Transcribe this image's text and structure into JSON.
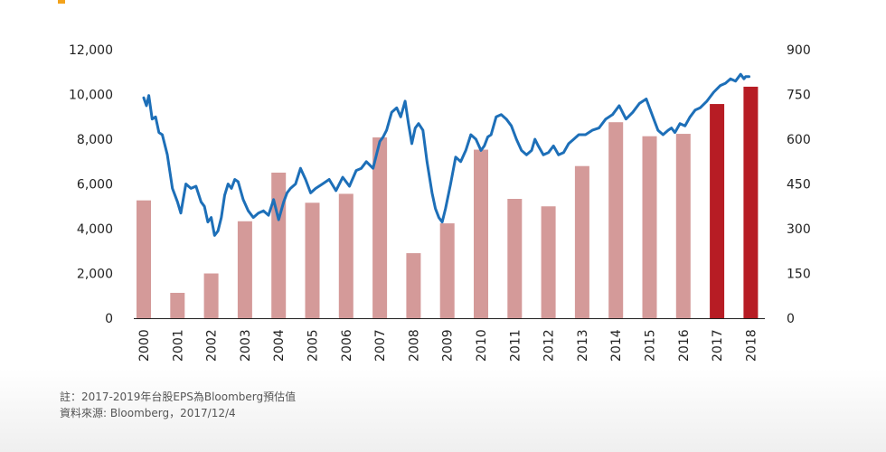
{
  "chart_data": {
    "type": "bar+line",
    "categories": [
      "2000",
      "2001",
      "2002",
      "2003",
      "2004",
      "2005",
      "2006",
      "2007",
      "2008",
      "2009",
      "2010",
      "2011",
      "2012",
      "2013",
      "2014",
      "2015",
      "2016",
      "2017",
      "2018"
    ],
    "left_axis": {
      "ylim": [
        0,
        12000
      ],
      "ticks": [
        "0",
        "2,000",
        "4,000",
        "6,000",
        "8,000",
        "10,000",
        "12,000"
      ]
    },
    "right_axis": {
      "ylim": [
        0,
        900
      ],
      "ticks": [
        "0",
        "150",
        "300",
        "450",
        "600",
        "750",
        "900"
      ]
    },
    "bars": {
      "axis": "right",
      "values": [
        395,
        85,
        150,
        325,
        488,
        387,
        417,
        606,
        218,
        318,
        565,
        400,
        375,
        510,
        657,
        610,
        618,
        718,
        776
      ],
      "colors": [
        "#d49a99",
        "#d49a99",
        "#d49a99",
        "#d49a99",
        "#d49a99",
        "#d49a99",
        "#d49a99",
        "#d49a99",
        "#d49a99",
        "#d49a99",
        "#d49a99",
        "#d49a99",
        "#d49a99",
        "#d49a99",
        "#d49a99",
        "#d49a99",
        "#d49a99",
        "#b71c24",
        "#b71c24"
      ]
    },
    "line": {
      "axis": "left",
      "color": "#1d6fb8",
      "x": [
        2000.0,
        2000.08,
        2000.15,
        2000.25,
        2000.35,
        2000.45,
        2000.55,
        2000.7,
        2000.85,
        2001.0,
        2001.1,
        2001.25,
        2001.4,
        2001.55,
        2001.7,
        2001.8,
        2001.9,
        2002.0,
        2002.1,
        2002.2,
        2002.3,
        2002.4,
        2002.5,
        2002.6,
        2002.7,
        2002.8,
        2002.95,
        2003.1,
        2003.25,
        2003.4,
        2003.55,
        2003.7,
        2003.85,
        2004.0,
        2004.15,
        2004.25,
        2004.35,
        2004.5,
        2004.65,
        2004.8,
        2004.95,
        2005.1,
        2005.3,
        2005.5,
        2005.7,
        2005.9,
        2006.1,
        2006.3,
        2006.45,
        2006.6,
        2006.8,
        2007.0,
        2007.1,
        2007.2,
        2007.35,
        2007.5,
        2007.62,
        2007.75,
        2007.85,
        2007.95,
        2008.05,
        2008.15,
        2008.28,
        2008.4,
        2008.55,
        2008.65,
        2008.75,
        2008.85,
        2008.95,
        2009.1,
        2009.25,
        2009.4,
        2009.55,
        2009.7,
        2009.85,
        2010.0,
        2010.1,
        2010.2,
        2010.3,
        2010.45,
        2010.6,
        2010.75,
        2010.9,
        2011.05,
        2011.2,
        2011.35,
        2011.5,
        2011.6,
        2011.7,
        2011.85,
        2012.0,
        2012.15,
        2012.3,
        2012.45,
        2012.6,
        2012.75,
        2012.9,
        2013.1,
        2013.3,
        2013.5,
        2013.7,
        2013.9,
        2014.1,
        2014.3,
        2014.5,
        2014.7,
        2014.9,
        2015.1,
        2015.25,
        2015.4,
        2015.55,
        2015.65,
        2015.75,
        2015.9,
        2016.05,
        2016.2,
        2016.35,
        2016.5,
        2016.7,
        2016.9,
        2017.1,
        2017.25,
        2017.4,
        2017.55,
        2017.7,
        2017.8,
        2017.85,
        2017.95
      ],
      "y": [
        9850,
        9500,
        9950,
        8900,
        9000,
        8300,
        8200,
        7300,
        5800,
        5200,
        4700,
        6000,
        5800,
        5900,
        5200,
        5000,
        4300,
        4500,
        3700,
        3900,
        4500,
        5500,
        6000,
        5800,
        6200,
        6100,
        5300,
        4800,
        4500,
        4700,
        4800,
        4600,
        5300,
        4400,
        5200,
        5600,
        5800,
        6000,
        6700,
        6200,
        5600,
        5800,
        6000,
        6200,
        5700,
        6300,
        5900,
        6600,
        6700,
        7000,
        6700,
        7900,
        8100,
        8400,
        9200,
        9400,
        9000,
        9700,
        8700,
        7800,
        8500,
        8700,
        8400,
        7000,
        5600,
        4900,
        4500,
        4300,
        4900,
        6000,
        7200,
        7000,
        7500,
        8200,
        8000,
        7500,
        7700,
        8100,
        8200,
        9000,
        9100,
        8900,
        8600,
        8000,
        7500,
        7300,
        7500,
        8000,
        7700,
        7300,
        7400,
        7700,
        7300,
        7400,
        7800,
        8000,
        8200,
        8200,
        8400,
        8500,
        8900,
        9100,
        9500,
        8900,
        9200,
        9600,
        9800,
        9000,
        8400,
        8200,
        8400,
        8500,
        8300,
        8700,
        8600,
        9000,
        9300,
        9400,
        9700,
        10100,
        10400,
        10500,
        10700,
        10600,
        10900,
        10700,
        10800,
        10800
      ]
    },
    "notes": {
      "line1": "註：2017-2019年台股EPS為Bloomberg預估值",
      "line2": "資料來源: Bloomberg，2017/12/4"
    }
  }
}
